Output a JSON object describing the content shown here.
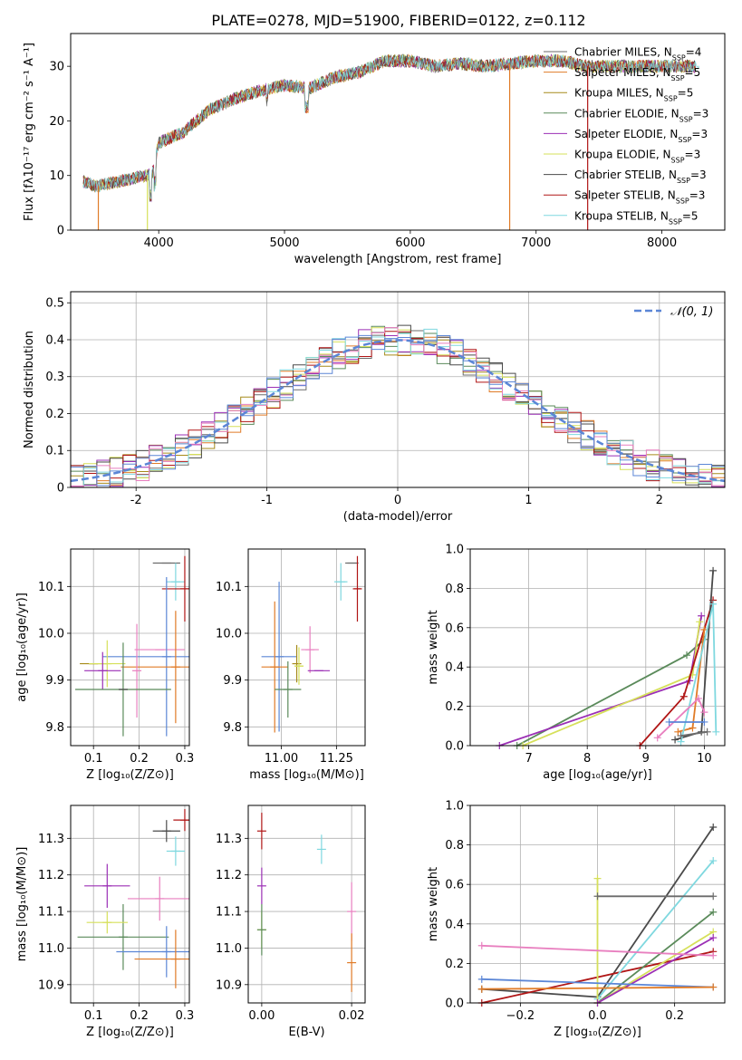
{
  "figure_title": "PLATE=0278, MJD=51900, FIBERID=0122, z=0.112",
  "colors": {
    "Chabrier MILES": "#6b6b6b",
    "Salpeter MILES": "#e07b27",
    "Kroupa MILES": "#a68a1a",
    "Chabrier ELODIE": "#5a8a5a",
    "Salpeter ELODIE": "#9b2fb5",
    "Kroupa ELODIE": "#d6e05a",
    "Chabrier STELIB": "#4a4a4a",
    "Salpeter STELIB": "#b01515",
    "Kroupa STELIB": "#7fd8df",
    "pink": "#e87fbf",
    "blue": "#5b86d6",
    "normal_curve": "#5b86d6"
  },
  "chart_data": [
    {
      "id": "spectrum",
      "type": "line",
      "title": "PLATE=0278, MJD=51900, FIBERID=0122, z=0.112",
      "xlabel": "wavelength [Angstrom, rest frame]",
      "ylabel": "Flux [fλ10⁻¹⁷ erg cm⁻² s⁻¹ A⁻¹]",
      "xlim": [
        3300,
        8500
      ],
      "ylim": [
        0,
        36
      ],
      "xticks": [
        4000,
        5000,
        6000,
        7000,
        8000
      ],
      "yticks": [
        0,
        10,
        20,
        30
      ],
      "legend_position": "right",
      "series": [
        {
          "name": "Chabrier MILES, N_SSP=4",
          "color": "#6b6b6b"
        },
        {
          "name": "Salpeter MILES, N_SSP=5",
          "color": "#e07b27"
        },
        {
          "name": "Kroupa MILES, N_SSP=5",
          "color": "#a68a1a"
        },
        {
          "name": "Chabrier ELODIE, N_SSP=3",
          "color": "#5a8a5a"
        },
        {
          "name": "Salpeter ELODIE, N_SSP=3",
          "color": "#9b2fb5"
        },
        {
          "name": "Kroupa ELODIE, N_SSP=3",
          "color": "#d6e05a"
        },
        {
          "name": "Chabrier STELIB, N_SSP=3",
          "color": "#4a4a4a"
        },
        {
          "name": "Salpeter STELIB, N_SSP=3",
          "color": "#b01515"
        },
        {
          "name": "Kroupa STELIB, N_SSP=5",
          "color": "#7fd8df"
        }
      ],
      "continuum": [
        [
          3400,
          9
        ],
        [
          3500,
          8
        ],
        [
          3700,
          9
        ],
        [
          3900,
          10
        ],
        [
          3950,
          10.5
        ],
        [
          4000,
          16
        ],
        [
          4200,
          18
        ],
        [
          4300,
          20
        ],
        [
          4400,
          22
        ],
        [
          4600,
          24
        ],
        [
          4800,
          25.5
        ],
        [
          5000,
          26.5
        ],
        [
          5200,
          26
        ],
        [
          5400,
          28
        ],
        [
          5600,
          29
        ],
        [
          5800,
          31
        ],
        [
          6000,
          31
        ],
        [
          6200,
          30
        ],
        [
          6400,
          30.5
        ],
        [
          6600,
          30
        ],
        [
          6800,
          30.5
        ],
        [
          7000,
          31
        ],
        [
          7200,
          31
        ],
        [
          7400,
          30
        ],
        [
          7600,
          30
        ],
        [
          8000,
          30
        ],
        [
          8300,
          30
        ]
      ]
    },
    {
      "id": "residuals",
      "type": "histogram",
      "xlabel": "(data-model)/error",
      "ylabel": "Normed distribution",
      "xlim": [
        -2.5,
        2.5
      ],
      "ylim": [
        0,
        0.53
      ],
      "xticks": [
        -2,
        -1,
        0,
        1,
        2
      ],
      "yticks": [
        0.0,
        0.1,
        0.2,
        0.3,
        0.4,
        0.5
      ],
      "bin_width": 0.1,
      "legend": [
        "𝒩(0, 1)"
      ],
      "legend_position": "top-right",
      "curve": "normal pdf, mean 0, sigma 1"
    },
    {
      "id": "age_vs_Z",
      "type": "scatter",
      "xlabel": "Z [log₁₀(Z/Z⊙)]",
      "ylabel": "age  [log₁₀(age/yr)]",
      "xlim": [
        0.05,
        0.31
      ],
      "ylim": [
        9.76,
        10.18
      ],
      "xticks": [
        "0.1",
        "0.2",
        "0.3"
      ],
      "yticks": [
        "9.8",
        "9.9",
        "10.0",
        "10.1"
      ],
      "points": [
        {
          "color": "#6b6b6b",
          "x": 0.26,
          "y": 10.15,
          "xerr": 0.03,
          "yerr": 0.0
        },
        {
          "color": "#7fd8df",
          "x": 0.28,
          "y": 10.11,
          "xerr": 0.02,
          "yerr": 0.04
        },
        {
          "color": "#b01515",
          "x": 0.3,
          "y": 10.095,
          "xerr": 0.05,
          "yerr": 0.07
        },
        {
          "color": "#e87fbf",
          "x": 0.245,
          "y": 9.965,
          "xerr": 0.055,
          "yerr": 0.0
        },
        {
          "color": "#5b86d6",
          "x": 0.26,
          "y": 9.95,
          "xerr": 0.14,
          "yerr": 0.17
        },
        {
          "color": "#a68a1a",
          "x": 0.1,
          "y": 9.935,
          "xerr": 0.03,
          "yerr": 0.0
        },
        {
          "color": "#e07b27",
          "x": 0.28,
          "y": 9.928,
          "xerr": 0.12,
          "yerr": 0.12
        },
        {
          "color": "#d6e05a",
          "x": 0.13,
          "y": 9.935,
          "xerr": 0.04,
          "yerr": 0.05
        },
        {
          "color": "#9b2fb5",
          "x": 0.12,
          "y": 9.92,
          "xerr": 0.04,
          "yerr": 0.04
        },
        {
          "color": "#e87fbf",
          "x": 0.195,
          "y": 9.92,
          "xerr": 0.0,
          "yerr": 0.1
        },
        {
          "color": "#5a8a5a",
          "x": 0.165,
          "y": 9.88,
          "xerr": 0.105,
          "yerr": 0.1
        },
        {
          "color": "#4a4a4a",
          "x": 0.165,
          "y": 9.88,
          "xerr": 0.0,
          "yerr": 0.0
        }
      ]
    },
    {
      "id": "age_vs_mass",
      "type": "scatter",
      "xlabel": "mass [log₁₀(M/M⊙)]",
      "xlim": [
        10.85,
        11.38
      ],
      "ylim": [
        9.76,
        10.18
      ],
      "xticks": [
        "11.00",
        "11.25"
      ],
      "yticks": [
        "9.8",
        "9.9",
        "10.0",
        "10.1"
      ],
      "points": [
        {
          "color": "#6b6b6b",
          "x": 11.32,
          "y": 10.15,
          "xerr": 0.03,
          "yerr": 0.0
        },
        {
          "color": "#7fd8df",
          "x": 11.27,
          "y": 10.11,
          "xerr": 0.03,
          "yerr": 0.04
        },
        {
          "color": "#b01515",
          "x": 11.345,
          "y": 10.095,
          "xerr": 0.015,
          "yerr": 0.07
        },
        {
          "color": "#e87fbf",
          "x": 11.13,
          "y": 9.965,
          "xerr": 0.04,
          "yerr": 0.05
        },
        {
          "color": "#5b86d6",
          "x": 10.99,
          "y": 9.95,
          "xerr": 0.08,
          "yerr": 0.16
        },
        {
          "color": "#a68a1a",
          "x": 11.07,
          "y": 9.935,
          "xerr": 0.0,
          "yerr": 0.04
        },
        {
          "color": "#e07b27",
          "x": 10.97,
          "y": 9.928,
          "xerr": 0.06,
          "yerr": 0.14
        },
        {
          "color": "#d6e05a",
          "x": 11.08,
          "y": 9.93,
          "xerr": 0.02,
          "yerr": 0.04
        },
        {
          "color": "#9b2fb5",
          "x": 11.17,
          "y": 9.92,
          "xerr": 0.05,
          "yerr": 0.0
        },
        {
          "color": "#5a8a5a",
          "x": 11.03,
          "y": 9.88,
          "xerr": 0.06,
          "yerr": 0.06
        }
      ]
    },
    {
      "id": "weight_vs_age",
      "type": "line",
      "xlabel": "age  [log₁₀(age/yr)]",
      "ylabel": "mass weight",
      "xlim": [
        6.0,
        10.35
      ],
      "ylim": [
        0,
        1.0
      ],
      "xticks": [
        "7",
        "8",
        "9",
        "10"
      ],
      "yticks": [
        "0.0",
        "0.2",
        "0.4",
        "0.6",
        "0.8",
        "1.0"
      ],
      "series": [
        {
          "color": "#5a8a5a",
          "x": [
            6.8,
            9.7,
            10.0
          ],
          "y": [
            0.0,
            0.46,
            0.54
          ]
        },
        {
          "color": "#9b2fb5",
          "x": [
            6.5,
            9.75,
            9.95
          ],
          "y": [
            0.0,
            0.33,
            0.66
          ]
        },
        {
          "color": "#d6e05a",
          "x": [
            6.9,
            9.8,
            9.92
          ],
          "y": [
            0.0,
            0.36,
            0.63
          ]
        },
        {
          "color": "#b01515",
          "x": [
            8.9,
            9.65,
            10.15
          ],
          "y": [
            0.0,
            0.25,
            0.74
          ]
        },
        {
          "color": "#e07b27",
          "x": [
            9.55,
            9.8,
            10.0
          ],
          "y": [
            0.07,
            0.09,
            0.59
          ]
        },
        {
          "color": "#4a4a4a",
          "x": [
            9.5,
            9.95,
            10.15
          ],
          "y": [
            0.03,
            0.07,
            0.89
          ]
        },
        {
          "color": "#7fd8df",
          "x": [
            9.6,
            10.15,
            10.2
          ],
          "y": [
            0.02,
            0.72,
            0.07
          ]
        },
        {
          "color": "#e87fbf",
          "x": [
            9.2,
            9.9,
            10.0
          ],
          "y": [
            0.04,
            0.24,
            0.17
          ]
        },
        {
          "color": "#5b86d6",
          "x": [
            9.4,
            10.0
          ],
          "y": [
            0.12,
            0.12
          ]
        },
        {
          "color": "#6b6b6b",
          "x": [
            9.6,
            10.05
          ],
          "y": [
            0.05,
            0.07
          ]
        }
      ]
    },
    {
      "id": "mass_vs_Z",
      "type": "scatter",
      "xlabel": "Z [log₁₀(Z/Z⊙)]",
      "ylabel": "mass [log₁₀(M/M⊙)]",
      "xlim": [
        0.05,
        0.31
      ],
      "ylim": [
        10.85,
        11.39
      ],
      "xticks": [
        "0.1",
        "0.2",
        "0.3"
      ],
      "yticks": [
        "10.9",
        "11.0",
        "11.1",
        "11.2",
        "11.3"
      ],
      "points": [
        {
          "color": "#b01515",
          "x": 0.3,
          "y": 11.35,
          "xerr": 0.025,
          "yerr": 0.03
        },
        {
          "color": "#4a4a4a",
          "x": 0.26,
          "y": 11.32,
          "xerr": 0.03,
          "yerr": 0.03
        },
        {
          "color": "#7fd8df",
          "x": 0.28,
          "y": 11.265,
          "xerr": 0.02,
          "yerr": 0.04
        },
        {
          "color": "#9b2fb5",
          "x": 0.13,
          "y": 11.17,
          "xerr": 0.05,
          "yerr": 0.06
        },
        {
          "color": "#e87fbf",
          "x": 0.245,
          "y": 11.135,
          "xerr": 0.07,
          "yerr": 0.06
        },
        {
          "color": "#5a8a5a",
          "x": 0.165,
          "y": 11.03,
          "xerr": 0.1,
          "yerr": 0.09
        },
        {
          "color": "#d6e05a",
          "x": 0.13,
          "y": 11.07,
          "xerr": 0.045,
          "yerr": 0.03
        },
        {
          "color": "#5b86d6",
          "x": 0.26,
          "y": 10.99,
          "xerr": 0.11,
          "yerr": 0.07
        },
        {
          "color": "#e07b27",
          "x": 0.28,
          "y": 10.97,
          "xerr": 0.09,
          "yerr": 0.08
        }
      ]
    },
    {
      "id": "mass_vs_EBV",
      "type": "scatter",
      "xlabel": "E(B-V)",
      "xlim": [
        -0.003,
        0.023
      ],
      "ylim": [
        10.85,
        11.39
      ],
      "xticks": [
        "0.00",
        "0.02"
      ],
      "yticks": [
        "10.9",
        "11.0",
        "11.1",
        "11.2",
        "11.3"
      ],
      "points": [
        {
          "color": "#b01515",
          "x": 0.0,
          "y": 11.32,
          "xerr": 0,
          "yerr": 0.05
        },
        {
          "color": "#9b2fb5",
          "x": 0.0,
          "y": 11.17,
          "xerr": 0,
          "yerr": 0.05
        },
        {
          "color": "#d6e05a",
          "x": 0.0,
          "y": 11.05,
          "xerr": 0,
          "yerr": 0.05
        },
        {
          "color": "#5a8a5a",
          "x": 0.0,
          "y": 11.05,
          "xerr": 0,
          "yerr": 0.07
        },
        {
          "color": "#7fd8df",
          "x": 0.0133,
          "y": 11.27,
          "xerr": 0,
          "yerr": 0.04
        },
        {
          "color": "#e87fbf",
          "x": 0.02,
          "y": 11.1,
          "xerr": 0,
          "yerr": 0.08
        },
        {
          "color": "#e07b27",
          "x": 0.02,
          "y": 10.96,
          "xerr": 0,
          "yerr": 0.08
        }
      ]
    },
    {
      "id": "weight_vs_Z",
      "type": "line",
      "xlabel": "Z [log₁₀(Z/Z⊙)]",
      "ylabel": "mass weight",
      "xlim": [
        -0.33,
        0.33
      ],
      "ylim": [
        0,
        1.0
      ],
      "xticks": [
        "−0.2",
        "0.0",
        "0.2"
      ],
      "yticks": [
        "0.0",
        "0.2",
        "0.4",
        "0.6",
        "0.8",
        "1.0"
      ],
      "series": [
        {
          "color": "#4a4a4a",
          "x": [
            -0.3,
            0.0,
            0.3
          ],
          "y": [
            0.07,
            0.03,
            0.89
          ]
        },
        {
          "color": "#b01515",
          "x": [
            -0.3,
            0.3
          ],
          "y": [
            0.0,
            0.26
          ]
        },
        {
          "color": "#7fd8df",
          "x": [
            0.0,
            0.3
          ],
          "y": [
            0.02,
            0.72
          ]
        },
        {
          "color": "#5a8a5a",
          "x": [
            0.0,
            0.3
          ],
          "y": [
            0.0,
            0.46
          ]
        },
        {
          "color": "#d6e05a",
          "x": [
            0.0,
            0.0,
            0.3
          ],
          "y": [
            0.63,
            0.0,
            0.36
          ]
        },
        {
          "color": "#9b2fb5",
          "x": [
            0.0,
            0.3
          ],
          "y": [
            0.0,
            0.33
          ]
        },
        {
          "color": "#e87fbf",
          "x": [
            -0.3,
            0.3
          ],
          "y": [
            0.29,
            0.24
          ]
        },
        {
          "color": "#5b86d6",
          "x": [
            -0.3,
            0.3
          ],
          "y": [
            0.12,
            0.08
          ]
        },
        {
          "color": "#e07b27",
          "x": [
            -0.3,
            0.3
          ],
          "y": [
            0.07,
            0.08
          ]
        },
        {
          "color": "#6b6b6b",
          "x": [
            0.0,
            0.3
          ],
          "y": [
            0.54,
            0.54
          ]
        }
      ]
    }
  ]
}
